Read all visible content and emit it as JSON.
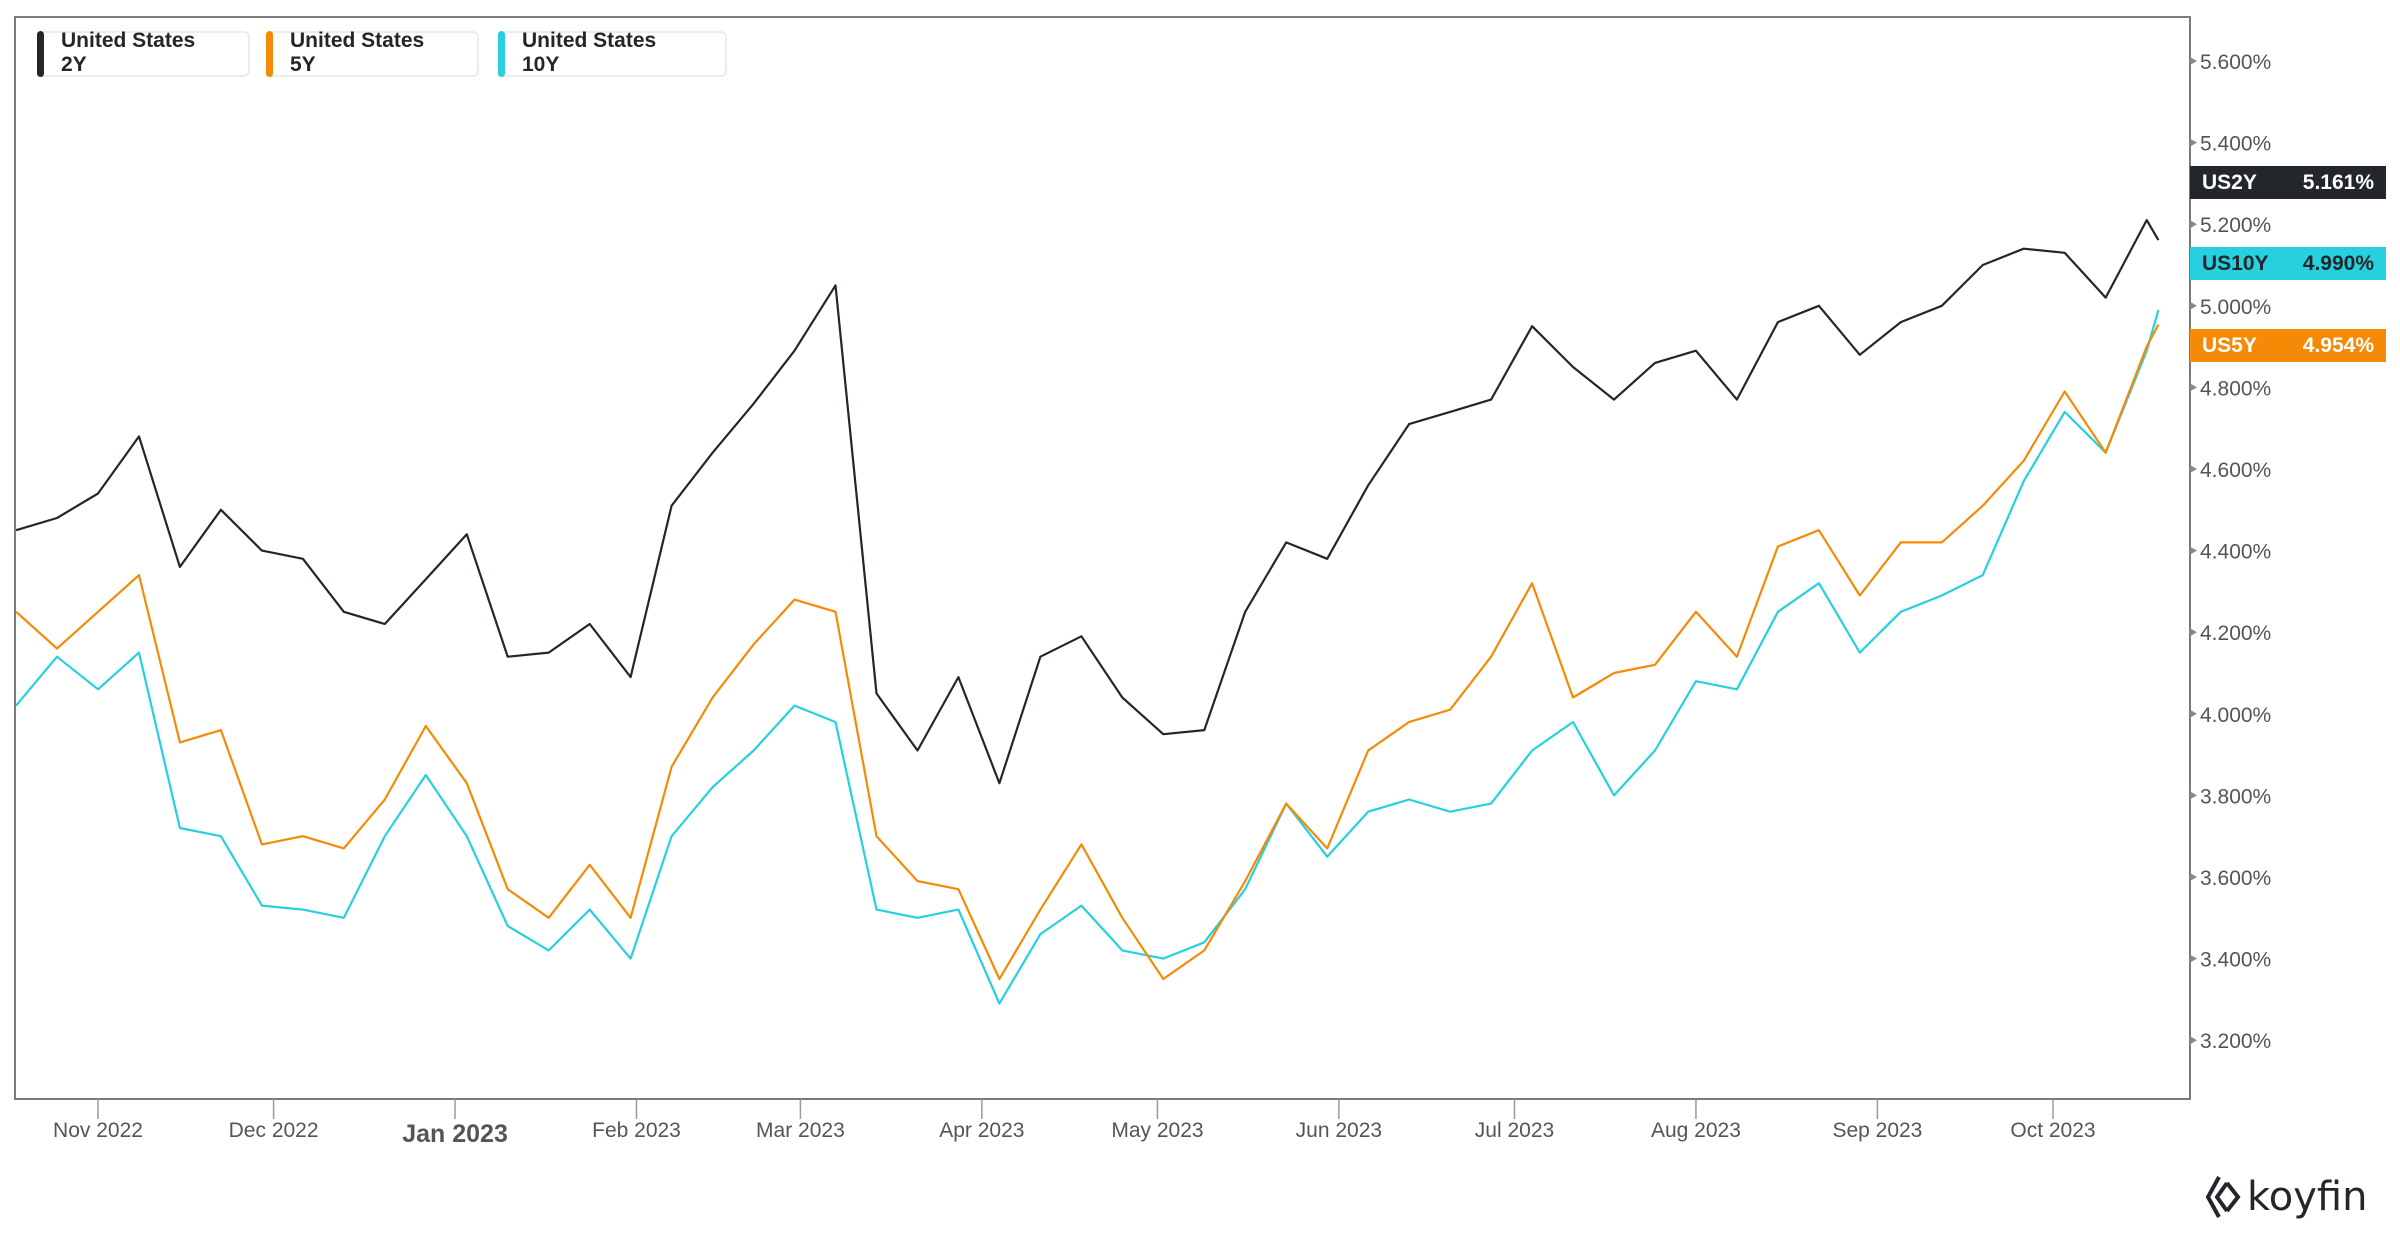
{
  "legend": [
    {
      "line1": "United States",
      "line2": "2Y",
      "color": "#23262b"
    },
    {
      "line1": "United States",
      "line2": "5Y",
      "color": "#f58a07"
    },
    {
      "line1": "United States",
      "line2": "10Y",
      "color": "#26d0df"
    }
  ],
  "tags": [
    {
      "ticker": "US2Y",
      "value": "5.161%",
      "bg": "#23262b",
      "fg": "#ffffff"
    },
    {
      "ticker": "US10Y",
      "value": "4.990%",
      "bg": "#26d0df",
      "fg": "#23262b"
    },
    {
      "ticker": "US5Y",
      "value": "4.954%",
      "bg": "#f58a07",
      "fg": "#ffffff"
    }
  ],
  "brand": "koyfin",
  "chart_data": {
    "type": "line",
    "title": "",
    "xlabel": "",
    "ylabel": "",
    "ylim": [
      3.05,
      5.7
    ],
    "yticks": [
      "3.200%",
      "3.400%",
      "3.600%",
      "3.800%",
      "4.000%",
      "4.200%",
      "4.400%",
      "4.600%",
      "4.800%",
      "5.000%",
      "5.200%",
      "5.400%",
      "5.600%"
    ],
    "ytick_values": [
      3.2,
      3.4,
      3.6,
      3.8,
      4.0,
      4.2,
      4.4,
      4.6,
      4.8,
      5.0,
      5.2,
      5.4,
      5.6
    ],
    "xticks": [
      {
        "date": "2022-11-01",
        "label": "Nov 2022"
      },
      {
        "date": "2022-12-01",
        "label": "Dec 2022"
      },
      {
        "date": "2023-01-01",
        "label": "Jan 2023",
        "bold": true
      },
      {
        "date": "2023-02-01",
        "label": "Feb 2023"
      },
      {
        "date": "2023-03-01",
        "label": "Mar 2023"
      },
      {
        "date": "2023-04-01",
        "label": "Apr 2023"
      },
      {
        "date": "2023-05-01",
        "label": "May 2023"
      },
      {
        "date": "2023-06-01",
        "label": "Jun 2023"
      },
      {
        "date": "2023-07-01",
        "label": "Jul 2023"
      },
      {
        "date": "2023-08-01",
        "label": "Aug 2023"
      },
      {
        "date": "2023-09-01",
        "label": "Sep 2023"
      },
      {
        "date": "2023-10-01",
        "label": "Oct 2023"
      }
    ],
    "x": [
      "2022-10-18",
      "2022-10-25",
      "2022-11-01",
      "2022-11-08",
      "2022-11-15",
      "2022-11-22",
      "2022-11-29",
      "2022-12-06",
      "2022-12-13",
      "2022-12-20",
      "2022-12-27",
      "2023-01-03",
      "2023-01-10",
      "2023-01-17",
      "2023-01-24",
      "2023-01-31",
      "2023-02-07",
      "2023-02-14",
      "2023-02-21",
      "2023-02-28",
      "2023-03-07",
      "2023-03-14",
      "2023-03-21",
      "2023-03-28",
      "2023-04-04",
      "2023-04-11",
      "2023-04-18",
      "2023-04-25",
      "2023-05-02",
      "2023-05-09",
      "2023-05-16",
      "2023-05-23",
      "2023-05-30",
      "2023-06-06",
      "2023-06-13",
      "2023-06-20",
      "2023-06-27",
      "2023-07-04",
      "2023-07-11",
      "2023-07-18",
      "2023-07-25",
      "2023-08-01",
      "2023-08-08",
      "2023-08-15",
      "2023-08-22",
      "2023-08-29",
      "2023-09-05",
      "2023-09-12",
      "2023-09-19",
      "2023-09-26",
      "2023-10-03",
      "2023-10-10",
      "2023-10-17",
      "2023-10-19"
    ],
    "series": [
      {
        "name": "US2Y",
        "color": "#23262b",
        "values": [
          4.45,
          4.48,
          4.54,
          4.68,
          4.36,
          4.5,
          4.4,
          4.38,
          4.25,
          4.22,
          4.33,
          4.44,
          4.14,
          4.15,
          4.22,
          4.09,
          4.51,
          4.64,
          4.76,
          4.89,
          5.05,
          4.05,
          3.91,
          4.09,
          3.83,
          4.14,
          4.19,
          4.04,
          3.95,
          3.96,
          4.25,
          4.42,
          4.38,
          4.56,
          4.71,
          4.74,
          4.77,
          4.95,
          4.85,
          4.77,
          4.86,
          4.89,
          4.77,
          4.96,
          5.0,
          4.88,
          4.96,
          5.0,
          5.1,
          5.14,
          5.13,
          5.02,
          5.21,
          5.161
        ]
      },
      {
        "name": "US5Y",
        "color": "#f58a07",
        "values": [
          4.25,
          4.16,
          4.25,
          4.34,
          3.93,
          3.96,
          3.68,
          3.7,
          3.67,
          3.79,
          3.97,
          3.83,
          3.57,
          3.5,
          3.63,
          3.5,
          3.87,
          4.04,
          4.17,
          4.28,
          4.25,
          3.7,
          3.59,
          3.57,
          3.35,
          3.52,
          3.68,
          3.5,
          3.35,
          3.42,
          3.59,
          3.78,
          3.67,
          3.91,
          3.98,
          4.01,
          4.14,
          4.32,
          4.04,
          4.1,
          4.12,
          4.25,
          4.14,
          4.41,
          4.45,
          4.29,
          4.42,
          4.42,
          4.51,
          4.62,
          4.79,
          4.64,
          4.9,
          4.954
        ]
      },
      {
        "name": "US10Y",
        "color": "#26d0df",
        "values": [
          4.02,
          4.14,
          4.06,
          4.15,
          3.72,
          3.7,
          3.53,
          3.52,
          3.5,
          3.7,
          3.85,
          3.7,
          3.48,
          3.42,
          3.52,
          3.4,
          3.7,
          3.82,
          3.91,
          4.02,
          3.98,
          3.52,
          3.5,
          3.52,
          3.29,
          3.46,
          3.53,
          3.42,
          3.4,
          3.44,
          3.57,
          3.78,
          3.65,
          3.76,
          3.79,
          3.76,
          3.78,
          3.91,
          3.98,
          3.8,
          3.91,
          4.08,
          4.06,
          4.25,
          4.32,
          4.15,
          4.25,
          4.29,
          4.34,
          4.57,
          4.74,
          4.64,
          4.89,
          4.99
        ]
      }
    ],
    "legend_position": "top-left",
    "grid": false
  }
}
